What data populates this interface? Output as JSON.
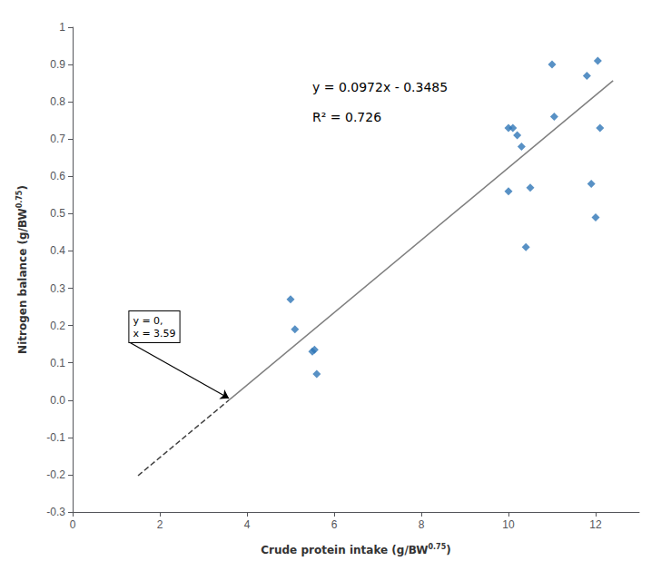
{
  "chart_data": {
    "type": "scatter",
    "xlabel": "Crude protein intake (g/BW0.75)",
    "ylabel": "Nitrogen balance (g/BW0.75)",
    "series": [
      {
        "type": "scatter",
        "color": "#2e75b6",
        "marker": "diamond",
        "x": [
          5.0,
          5.1,
          5.5,
          5.55,
          5.6,
          10.0,
          10.0,
          10.1,
          10.2,
          10.3,
          10.4,
          10.5,
          11.0,
          11.05,
          11.8,
          11.9,
          12.0,
          12.05,
          12.1
        ],
        "values": [
          0.27,
          0.19,
          0.13,
          0.135,
          0.07,
          0.73,
          0.56,
          0.73,
          0.71,
          0.68,
          0.41,
          0.57,
          0.9,
          0.76,
          0.87,
          0.58,
          0.49,
          0.91,
          0.73
        ]
      },
      {
        "type": "line",
        "color": "#7f7f7f",
        "line_style": "solid",
        "x": [
          3.585,
          12.4
        ],
        "values": [
          -3.8e-05,
          0.85678
        ]
      },
      {
        "type": "line",
        "color": "#404040",
        "line_style": "dashed",
        "x": [
          1.5,
          3.585
        ],
        "values": [
          -0.2027,
          -3.8e-05
        ]
      }
    ],
    "annotations": [
      {
        "text": "y = 0.0972x - 0.3485",
        "x": 5.5,
        "y": 0.84
      },
      {
        "text": "R² = 0.726",
        "x": 5.5,
        "y": 0.76
      },
      {
        "text": "y = 0,\nx = 3.59",
        "x": 1.3,
        "y": 0.155,
        "arrow_to": [
          3.585,
          0.005
        ]
      }
    ],
    "xlim": [
      0,
      13
    ],
    "ylim": [
      -0.3,
      1
    ],
    "xticks": [
      0,
      2,
      4,
      6,
      8,
      10,
      12
    ],
    "yticks": [
      -0.3,
      -0.2,
      -0.1,
      {
        "value": 0,
        "label": "0.0"
      },
      0.1,
      0.2,
      0.3,
      0.4,
      0.5,
      0.6,
      0.7,
      0.8,
      0.9,
      1
    ],
    "grid": false
  }
}
